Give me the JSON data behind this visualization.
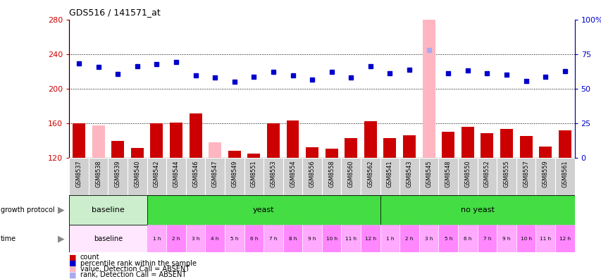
{
  "title": "GDS516 / 141571_at",
  "samples": [
    "GSM8537",
    "GSM8538",
    "GSM8539",
    "GSM8540",
    "GSM8542",
    "GSM8544",
    "GSM8546",
    "GSM8547",
    "GSM8549",
    "GSM8551",
    "GSM8553",
    "GSM8554",
    "GSM8556",
    "GSM8558",
    "GSM8560",
    "GSM8562",
    "GSM8541",
    "GSM8543",
    "GSM8545",
    "GSM8548",
    "GSM8550",
    "GSM8552",
    "GSM8555",
    "GSM8557",
    "GSM8559",
    "GSM8561"
  ],
  "count_values": [
    160,
    157,
    139,
    131,
    160,
    161,
    171,
    138,
    128,
    125,
    160,
    163,
    132,
    130,
    143,
    162,
    143,
    146,
    280,
    150,
    156,
    148,
    153,
    145,
    133,
    152
  ],
  "count_absent": [
    false,
    true,
    false,
    false,
    false,
    false,
    false,
    true,
    false,
    false,
    false,
    false,
    false,
    false,
    false,
    false,
    false,
    false,
    true,
    false,
    false,
    false,
    false,
    false,
    false,
    false
  ],
  "rank_values": [
    229,
    225,
    217,
    226,
    228,
    231,
    215,
    213,
    208,
    214,
    219,
    215,
    210,
    219,
    213,
    226,
    218,
    222,
    245,
    218,
    221,
    218,
    216,
    209,
    214,
    220
  ],
  "rank_absent": [
    false,
    false,
    false,
    false,
    false,
    false,
    false,
    false,
    false,
    false,
    false,
    false,
    false,
    false,
    false,
    false,
    false,
    false,
    true,
    false,
    false,
    false,
    false,
    false,
    false,
    false
  ],
  "ylim_left": [
    120,
    280
  ],
  "ylim_right": [
    0,
    100
  ],
  "yticks_left": [
    120,
    160,
    200,
    240,
    280
  ],
  "yticks_right": [
    0,
    25,
    50,
    75,
    100
  ],
  "hlines": [
    160,
    200,
    240
  ],
  "bar_color": "#CC0000",
  "absent_bar_color": "#FFB6C1",
  "rank_color": "#0000CC",
  "rank_absent_color": "#AAAAEE",
  "gp_groups": [
    {
      "label": "baseline",
      "start": 0,
      "end": 4,
      "color": "#CCEECC"
    },
    {
      "label": "yeast",
      "start": 4,
      "end": 16,
      "color": "#44DD44"
    },
    {
      "label": "no yeast",
      "start": 16,
      "end": 26,
      "color": "#44DD44"
    }
  ],
  "yeast_time_labels": [
    "1 h",
    "2 h",
    "3 h",
    "4 h",
    "5 h",
    "6 h",
    "7 h",
    "8 h",
    "9 h",
    "10 h",
    "11 h",
    "12 h"
  ],
  "no_yeast_time_labels": [
    "1 h",
    "2 h",
    "3 h",
    "5 h",
    "6 h",
    "7 h",
    "9 h",
    "10 h",
    "11 h",
    "12 h"
  ],
  "time_baseline_color": "#FFE8FF",
  "time_yeast_colors": [
    "#FFAAFF",
    "#FF88FF"
  ],
  "time_no_yeast_colors": [
    "#FFAAFF",
    "#FF88FF"
  ],
  "sample_box_color": "#D0D0D0",
  "legend_items": [
    {
      "label": "count",
      "color": "#CC0000"
    },
    {
      "label": "percentile rank within the sample",
      "color": "#0000CC"
    },
    {
      "label": "value, Detection Call = ABSENT",
      "color": "#FFB6C1"
    },
    {
      "label": "rank, Detection Call = ABSENT",
      "color": "#AAAAEE"
    }
  ]
}
